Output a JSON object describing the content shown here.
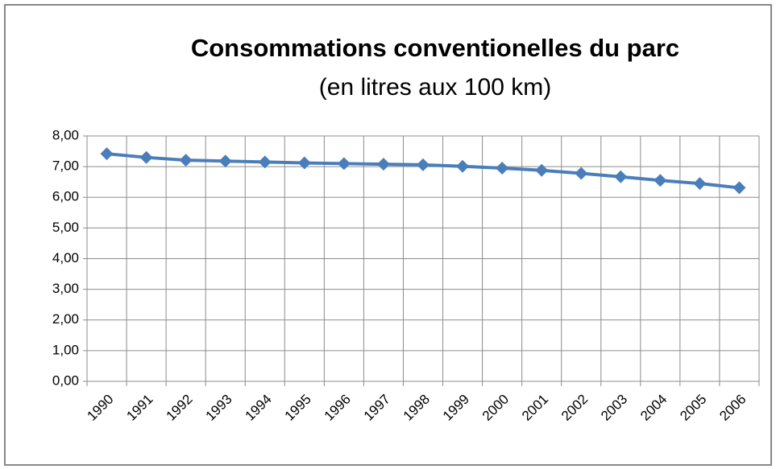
{
  "chart_data": {
    "type": "line",
    "title": "Consommations conventionelles du parc",
    "subtitle": "(en litres aux 100 km)",
    "categories": [
      "1990",
      "1991",
      "1992",
      "1993",
      "1994",
      "1995",
      "1996",
      "1997",
      "1998",
      "1999",
      "2000",
      "2001",
      "2002",
      "2003",
      "2004",
      "2005",
      "2006"
    ],
    "values": [
      7.42,
      7.3,
      7.21,
      7.18,
      7.15,
      7.12,
      7.1,
      7.08,
      7.06,
      7.01,
      6.95,
      6.88,
      6.78,
      6.67,
      6.55,
      6.45,
      6.31
    ],
    "color": "#4a7ebb",
    "ylim": [
      0,
      8
    ],
    "yticks": [
      {
        "value": 0,
        "label": "0,00"
      },
      {
        "value": 1,
        "label": "1,00"
      },
      {
        "value": 2,
        "label": "2,00"
      },
      {
        "value": 3,
        "label": "3,00"
      },
      {
        "value": 4,
        "label": "4,00"
      },
      {
        "value": 5,
        "label": "5,00"
      },
      {
        "value": 6,
        "label": "6,00"
      },
      {
        "value": 7,
        "label": "7,00"
      },
      {
        "value": 8,
        "label": "8,00"
      }
    ],
    "grid": true
  }
}
